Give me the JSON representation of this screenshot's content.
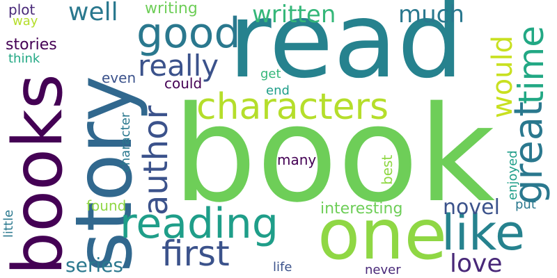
{
  "word_cloud": {
    "palette": {
      "dark_purple": "#440154",
      "indigo": "#3b528b",
      "blue": "#31688e",
      "teal": "#26828e",
      "green_teal": "#1f9e89",
      "green": "#35b779",
      "light_green": "#6ece58",
      "lime": "#b5de2b"
    },
    "words": [
      {
        "text": "book",
        "color": "#6ece58",
        "orientation": "horizontal"
      },
      {
        "text": "read",
        "color": "#26828e",
        "orientation": "horizontal"
      },
      {
        "text": "story",
        "color": "#31688e",
        "orientation": "vertical"
      },
      {
        "text": "books",
        "color": "#440154",
        "orientation": "vertical"
      },
      {
        "text": "one",
        "color": "#8fd744",
        "orientation": "horizontal"
      },
      {
        "text": "characters",
        "color": "#b5de2b",
        "orientation": "horizontal"
      },
      {
        "text": "reading",
        "color": "#1f9e89",
        "orientation": "horizontal"
      },
      {
        "text": "like",
        "color": "#26828e",
        "orientation": "horizontal"
      },
      {
        "text": "good",
        "color": "#2a788e",
        "orientation": "horizontal"
      },
      {
        "text": "great",
        "color": "#2a788e",
        "orientation": "vertical"
      },
      {
        "text": "author",
        "color": "#3b528b",
        "orientation": "vertical"
      },
      {
        "text": "first",
        "color": "#3b528b",
        "orientation": "horizontal"
      },
      {
        "text": "time",
        "color": "#22a884",
        "orientation": "vertical"
      },
      {
        "text": "would",
        "color": "#c8e020",
        "orientation": "vertical"
      },
      {
        "text": "really",
        "color": "#3b528b",
        "orientation": "horizontal"
      },
      {
        "text": "written",
        "color": "#35b779",
        "orientation": "horizontal"
      },
      {
        "text": "well",
        "color": "#2a788e",
        "orientation": "horizontal"
      },
      {
        "text": "much",
        "color": "#2a788e",
        "orientation": "horizontal"
      },
      {
        "text": "love",
        "color": "#482878",
        "orientation": "horizontal"
      },
      {
        "text": "novel",
        "color": "#3b528b",
        "orientation": "horizontal"
      },
      {
        "text": "series",
        "color": "#2a788e",
        "orientation": "horizontal"
      },
      {
        "text": "interesting",
        "color": "#6ece58",
        "orientation": "horizontal"
      },
      {
        "text": "writing",
        "color": "#6ece58",
        "orientation": "horizontal"
      },
      {
        "text": "stories",
        "color": "#440154",
        "orientation": "horizontal"
      },
      {
        "text": "plot",
        "color": "#482878",
        "orientation": "horizontal"
      },
      {
        "text": "way",
        "color": "#b5de2b",
        "orientation": "horizontal"
      },
      {
        "text": "think",
        "color": "#22a884",
        "orientation": "horizontal"
      },
      {
        "text": "even",
        "color": "#3b528b",
        "orientation": "horizontal"
      },
      {
        "text": "could",
        "color": "#440154",
        "orientation": "horizontal"
      },
      {
        "text": "get",
        "color": "#35b779",
        "orientation": "horizontal"
      },
      {
        "text": "end",
        "color": "#1f9e89",
        "orientation": "horizontal"
      },
      {
        "text": "character",
        "color": "#2a788e",
        "orientation": "vertical"
      },
      {
        "text": "many",
        "color": "#440154",
        "orientation": "horizontal"
      },
      {
        "text": "best",
        "color": "#8fd744",
        "orientation": "vertical"
      },
      {
        "text": "enjoyed",
        "color": "#1f9e89",
        "orientation": "vertical"
      },
      {
        "text": "found",
        "color": "#8fd744",
        "orientation": "horizontal"
      },
      {
        "text": "put",
        "color": "#2a788e",
        "orientation": "horizontal"
      },
      {
        "text": "little",
        "color": "#2a788e",
        "orientation": "vertical"
      },
      {
        "text": "life",
        "color": "#3b528b",
        "orientation": "horizontal"
      },
      {
        "text": "never",
        "color": "#482878",
        "orientation": "horizontal"
      }
    ]
  }
}
